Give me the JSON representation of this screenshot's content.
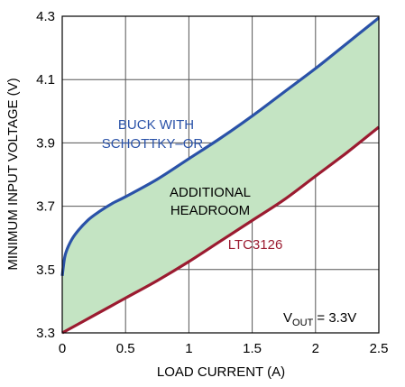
{
  "chart_data": {
    "type": "area",
    "xlabel": "LOAD CURRENT (A)",
    "ylabel": "MINIMUM INPUT VOLTAGE (V)",
    "xlim": [
      0,
      2.5
    ],
    "ylim": [
      3.3,
      4.3
    ],
    "x_ticks": [
      0,
      0.5,
      1,
      1.5,
      2,
      2.5
    ],
    "x_tick_labels": [
      "0",
      "0.5",
      "1",
      "1.5",
      "2",
      "2.5"
    ],
    "y_ticks": [
      3.3,
      3.5,
      3.7,
      3.9,
      4.1,
      4.3
    ],
    "y_tick_labels": [
      "3.3",
      "3.5",
      "3.7",
      "3.9",
      "4.1",
      "4.3"
    ],
    "grid": true,
    "series": [
      {
        "name": "BUCK WITH SCHOTTKY–OR",
        "color": "#2a52a8",
        "x": [
          0,
          0.02,
          0.05,
          0.1,
          0.2,
          0.3,
          0.4,
          0.5,
          0.75,
          1.0,
          1.25,
          1.5,
          1.75,
          2.0,
          2.25,
          2.5
        ],
        "y": [
          3.48,
          3.54,
          3.575,
          3.61,
          3.655,
          3.685,
          3.71,
          3.73,
          3.785,
          3.85,
          3.915,
          3.985,
          4.06,
          4.135,
          4.215,
          4.295
        ]
      },
      {
        "name": "LTC3126",
        "color": "#9b1b30",
        "x": [
          0,
          0.25,
          0.5,
          0.75,
          1.0,
          1.25,
          1.5,
          1.75,
          2.0,
          2.25,
          2.5
        ],
        "y": [
          3.3,
          3.355,
          3.41,
          3.465,
          3.525,
          3.59,
          3.655,
          3.72,
          3.795,
          3.87,
          3.95
        ]
      }
    ],
    "fill_between": {
      "color": "#c4e4c3"
    },
    "annotations": {
      "buck_line1": "BUCK WITH",
      "buck_line2": "SCHOTTKY–OR",
      "headroom_line1": "ADDITIONAL",
      "headroom_line2": "HEADROOM",
      "ltc_label": "LTC3126",
      "vout_main": "V",
      "vout_sub": "OUT",
      "vout_rest": " = 3.3V"
    },
    "colors": {
      "grid": "#555555",
      "frame": "#000000",
      "buck_text": "#2a52a8",
      "ltc_text": "#9b1b30"
    }
  }
}
